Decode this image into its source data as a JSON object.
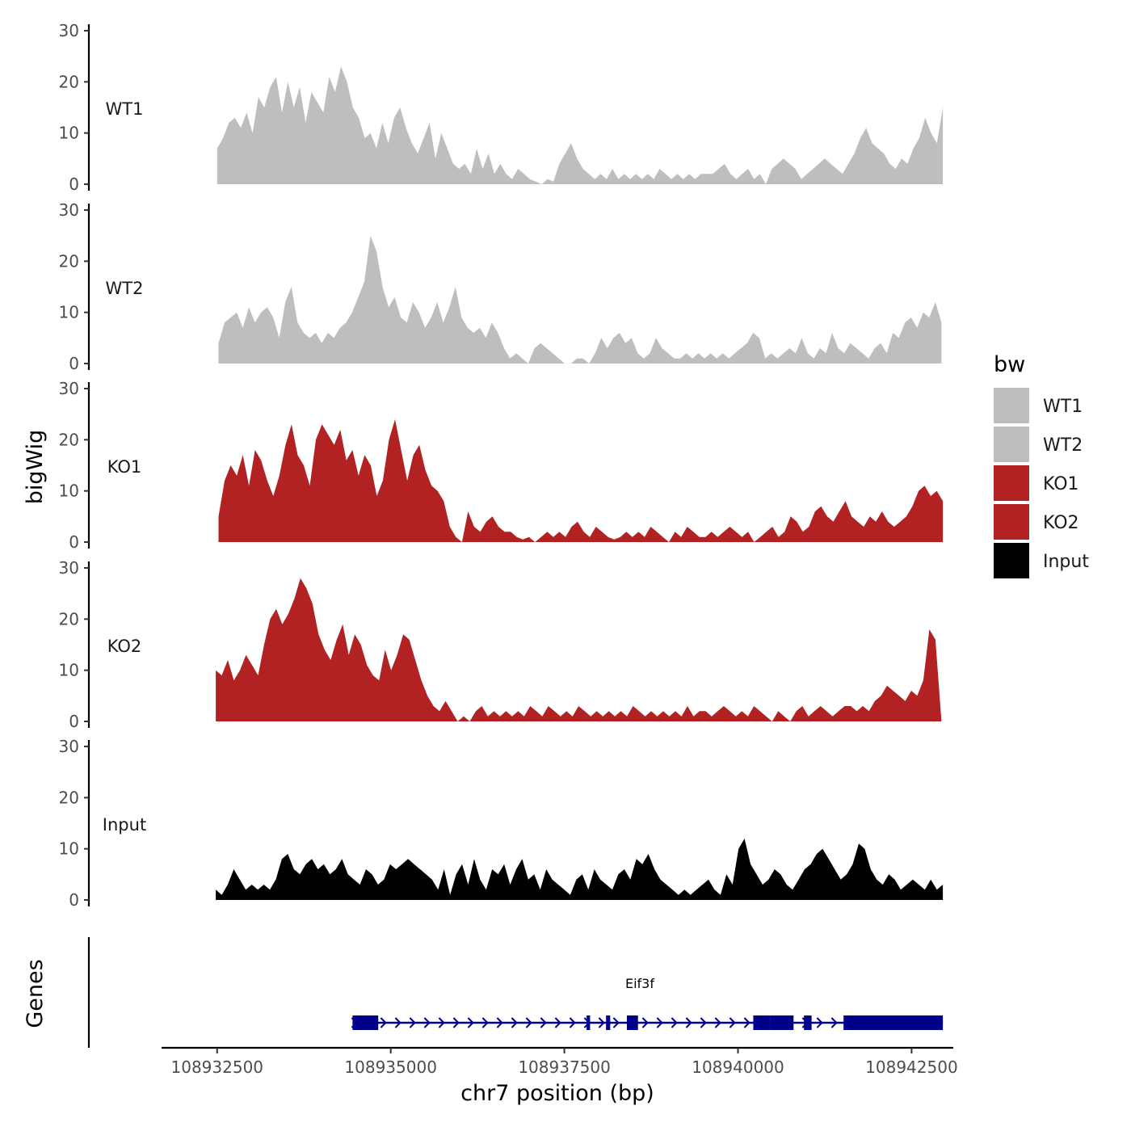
{
  "chart_data": {
    "type": "area",
    "title": "",
    "ylabel": "bigWig",
    "xlabel": "chr7 position (bp)",
    "genes_label": "Genes",
    "xlim": [
      108931700,
      108943100
    ],
    "ylim": [
      0,
      30
    ],
    "xticks": [
      108932500,
      108935000,
      108937500,
      108940000,
      108942500
    ],
    "yticks": [
      0,
      10,
      20,
      30
    ],
    "legend": {
      "title": "bw",
      "position": "right",
      "entries": [
        {
          "label": "WT1",
          "color": "#bebebe"
        },
        {
          "label": "WT2",
          "color": "#bebebe"
        },
        {
          "label": "KO1",
          "color": "#b22222"
        },
        {
          "label": "KO2",
          "color": "#b22222"
        },
        {
          "label": "Input",
          "color": "#000000"
        }
      ]
    },
    "series": [
      {
        "name": "WT1",
        "color": "#bebebe",
        "x_start": 108932500,
        "x_end": 108942950,
        "values": [
          7,
          9,
          12,
          13,
          11,
          14,
          10,
          17,
          15,
          19,
          21,
          14,
          20,
          15,
          19,
          12,
          18,
          16,
          14,
          21,
          18,
          23,
          20,
          15,
          13,
          9,
          10,
          7,
          12,
          8,
          13,
          15,
          11,
          8,
          6,
          9,
          12,
          5,
          10,
          7,
          4,
          3,
          4,
          2,
          7,
          3,
          6,
          2,
          4,
          2,
          1,
          3,
          2,
          1,
          0.5,
          0,
          1,
          0.5,
          4,
          6,
          8,
          5,
          3,
          2,
          1,
          2,
          1,
          3,
          1,
          2,
          1,
          2,
          1,
          2,
          1,
          3,
          2,
          1,
          2,
          1,
          2,
          1,
          2,
          2,
          2,
          3,
          4,
          2,
          1,
          2,
          3,
          1,
          2,
          0,
          3,
          4,
          5,
          4,
          3,
          1,
          2,
          3,
          4,
          5,
          4,
          3,
          2,
          4,
          6,
          9,
          11,
          8,
          7,
          6,
          4,
          3,
          5,
          4,
          7,
          9,
          13,
          10,
          8,
          15
        ]
      },
      {
        "name": "WT2",
        "color": "#bebebe",
        "x_start": 108932520,
        "x_end": 108942930,
        "values": [
          4,
          8,
          9,
          10,
          7,
          11,
          8,
          10,
          11,
          9,
          5,
          12,
          15,
          8,
          6,
          5,
          6,
          4,
          6,
          5,
          7,
          8,
          10,
          13,
          16,
          25,
          22,
          15,
          11,
          13,
          9,
          8,
          12,
          10,
          7,
          9,
          12,
          8,
          11,
          15,
          9,
          7,
          6,
          7,
          5,
          8,
          6,
          3,
          1,
          2,
          1,
          0,
          3,
          4,
          3,
          2,
          1,
          0,
          0,
          1,
          1,
          0,
          2,
          5,
          3,
          5,
          6,
          4,
          5,
          2,
          1,
          2,
          5,
          3,
          2,
          1,
          1,
          2,
          1,
          2,
          1,
          2,
          1,
          2,
          1,
          2,
          3,
          4,
          6,
          5,
          1,
          2,
          1,
          2,
          3,
          2,
          5,
          2,
          1,
          3,
          2,
          6,
          3,
          2,
          4,
          3,
          2,
          1,
          3,
          4,
          2,
          6,
          5,
          8,
          9,
          7,
          10,
          9,
          12,
          8
        ]
      },
      {
        "name": "KO1",
        "color": "#b22222",
        "x_start": 108932520,
        "x_end": 108942950,
        "values": [
          5,
          12,
          15,
          13,
          17,
          11,
          18,
          16,
          12,
          9,
          13,
          19,
          23,
          17,
          15,
          11,
          20,
          23,
          21,
          19,
          22,
          16,
          18,
          13,
          17,
          15,
          9,
          12,
          20,
          24,
          18,
          12,
          17,
          19,
          14,
          11,
          10,
          8,
          3,
          1,
          0,
          6,
          3,
          2,
          4,
          5,
          3,
          2,
          2,
          1,
          0.5,
          1,
          0,
          1,
          2,
          1,
          2,
          1,
          3,
          4,
          2,
          1,
          3,
          2,
          1,
          0.5,
          1,
          2,
          1,
          2,
          1,
          3,
          2,
          1,
          0,
          2,
          1,
          3,
          2,
          1,
          1,
          2,
          1,
          2,
          3,
          2,
          1,
          2,
          0,
          1,
          2,
          3,
          1,
          2,
          5,
          4,
          2,
          3,
          6,
          7,
          5,
          4,
          6,
          8,
          5,
          4,
          3,
          5,
          4,
          6,
          4,
          3,
          4,
          5,
          7,
          10,
          11,
          9,
          10,
          8
        ]
      },
      {
        "name": "KO2",
        "color": "#b22222",
        "x_start": 108932480,
        "x_end": 108942930,
        "values": [
          10,
          9,
          12,
          8,
          10,
          13,
          11,
          9,
          15,
          20,
          22,
          19,
          21,
          24,
          28,
          26,
          23,
          17,
          14,
          12,
          16,
          19,
          13,
          17,
          15,
          11,
          9,
          8,
          14,
          10,
          13,
          17,
          16,
          12,
          8,
          5,
          3,
          2,
          4,
          2,
          0,
          1,
          0,
          2,
          3,
          1,
          2,
          1,
          2,
          1,
          2,
          1,
          3,
          2,
          1,
          3,
          2,
          1,
          2,
          1,
          3,
          2,
          1,
          2,
          1,
          2,
          1,
          2,
          1,
          3,
          2,
          1,
          2,
          1,
          2,
          1,
          2,
          1,
          3,
          1,
          2,
          2,
          1,
          2,
          3,
          2,
          1,
          2,
          1,
          3,
          2,
          1,
          0,
          2,
          1,
          0,
          2,
          3,
          1,
          2,
          3,
          2,
          1,
          2,
          3,
          3,
          2,
          3,
          2,
          4,
          5,
          7,
          6,
          5,
          4,
          6,
          5,
          8,
          18,
          16,
          0
        ]
      },
      {
        "name": "Input",
        "color": "#000000",
        "x_start": 108932480,
        "x_end": 108942950,
        "values": [
          2,
          1,
          3,
          6,
          4,
          2,
          3,
          2,
          3,
          2,
          4,
          8,
          9,
          6,
          5,
          7,
          8,
          6,
          7,
          5,
          6,
          8,
          5,
          4,
          3,
          6,
          5,
          3,
          4,
          7,
          6,
          7,
          8,
          7,
          6,
          5,
          4,
          2,
          6,
          1,
          5,
          7,
          3,
          8,
          4,
          2,
          6,
          5,
          7,
          3,
          6,
          8,
          4,
          5,
          2,
          6,
          4,
          3,
          2,
          1,
          4,
          5,
          2,
          6,
          4,
          3,
          2,
          5,
          6,
          4,
          8,
          7,
          9,
          6,
          4,
          3,
          2,
          1,
          2,
          1,
          2,
          3,
          4,
          2,
          1,
          5,
          3,
          10,
          12,
          7,
          5,
          3,
          4,
          6,
          5,
          3,
          2,
          4,
          6,
          7,
          9,
          10,
          8,
          6,
          4,
          5,
          7,
          11,
          10,
          6,
          4,
          3,
          5,
          4,
          2,
          3,
          4,
          3,
          2,
          4,
          2,
          3
        ]
      }
    ],
    "genes": [
      {
        "name": "Eif3f",
        "strand": "+",
        "start": 108934450,
        "end": 108942950,
        "exons": [
          [
            108934450,
            108934820
          ],
          [
            108937820,
            108937870
          ],
          [
            108938100,
            108938160
          ],
          [
            108938400,
            108938560
          ],
          [
            108940220,
            108940470
          ],
          [
            108940470,
            108940800
          ],
          [
            108940950,
            108941060
          ],
          [
            108941520,
            108942950
          ]
        ]
      }
    ]
  }
}
